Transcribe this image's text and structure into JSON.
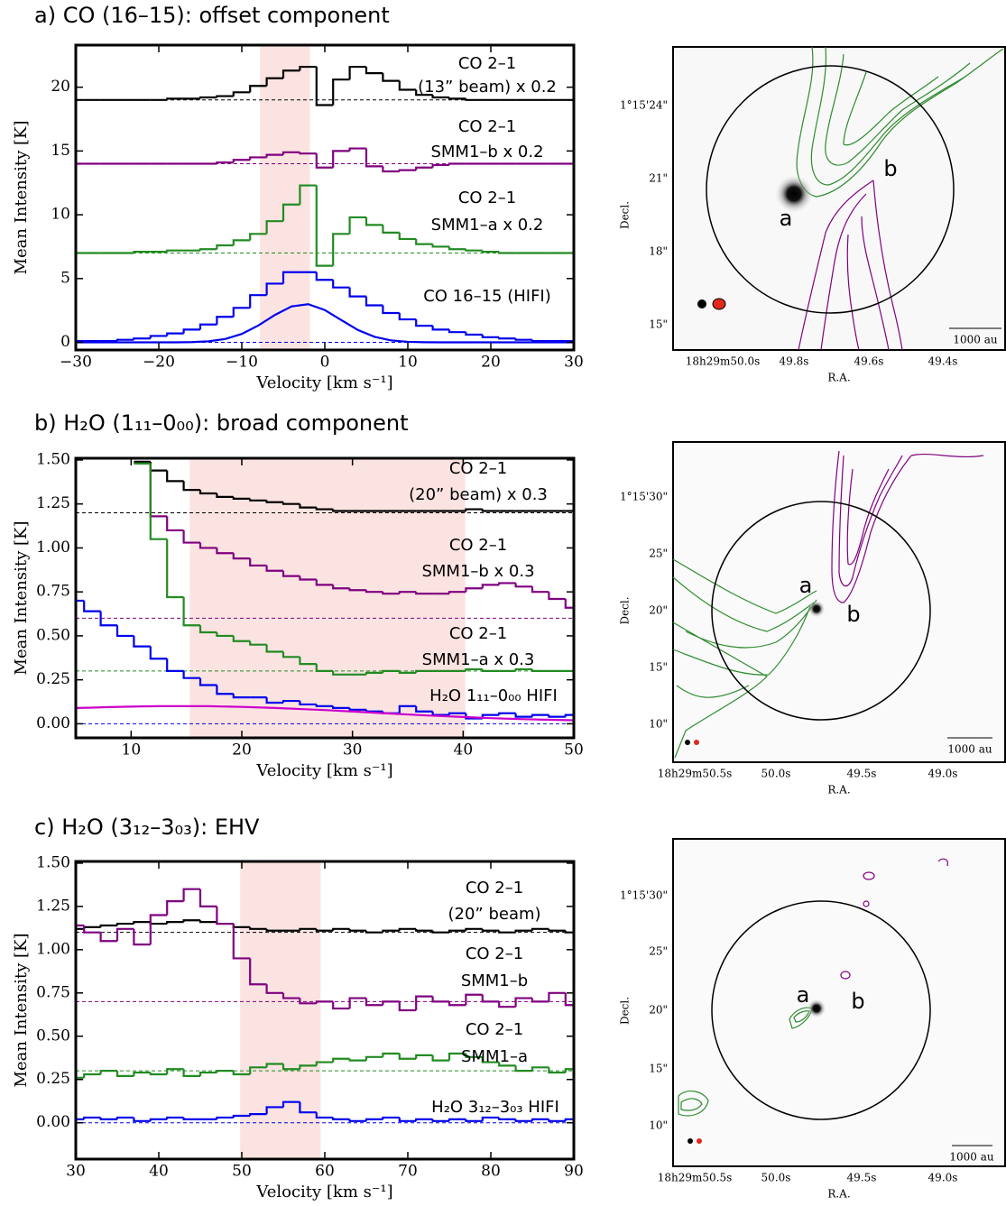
{
  "chart_data": [
    {
      "type": "step",
      "title": "a) CO (16–15): offset component",
      "xlabel": "Velocity [km s⁻¹]",
      "ylabel": "Mean Intensity [K]",
      "x": [
        -30,
        -28,
        -26,
        -24,
        -22,
        -20,
        -18,
        -16,
        -14,
        -12,
        -10,
        -8,
        -6,
        -4,
        -2,
        0,
        2,
        4,
        6,
        8,
        10,
        12,
        14,
        16,
        18,
        20,
        22,
        24,
        26,
        28,
        30
      ],
      "xlim": [
        -30,
        30
      ],
      "xticks": [
        {
          "value": -30,
          "label": "−30"
        },
        {
          "value": -20,
          "label": "−20"
        },
        {
          "value": -10,
          "label": "−10"
        },
        0,
        10,
        20,
        30
      ],
      "ylim": [
        -0.6,
        23.3
      ],
      "yticks": [
        0,
        5,
        10,
        15,
        20
      ],
      "shade": [
        -7.8,
        -1.8
      ],
      "shade_color": "#fbe3e1",
      "series": [
        {
          "label": [
            "CO 2–1",
            "(13” beam) x 0.2"
          ],
          "color": "#000000",
          "baseline": 19,
          "values": [
            19,
            19,
            19,
            19,
            19,
            19,
            19.1,
            19.1,
            19.2,
            19.3,
            19.6,
            20.1,
            20.7,
            21.3,
            21.6,
            18.6,
            20.6,
            21.6,
            21.1,
            20.5,
            19.8,
            19.4,
            19.2,
            19.1,
            19,
            19,
            19,
            19,
            19,
            19,
            19
          ]
        },
        {
          "label": [
            "CO 2–1",
            "SMM1–b x 0.2"
          ],
          "color": "#800080",
          "baseline": 14,
          "values": [
            14,
            14,
            14,
            14,
            14,
            14,
            14,
            14,
            14,
            14.1,
            14.3,
            14.5,
            14.7,
            14.9,
            14.8,
            13.7,
            15,
            15.2,
            13.8,
            13.4,
            13.5,
            13.7,
            13.9,
            14,
            14,
            14,
            14,
            14,
            14,
            14,
            14
          ]
        },
        {
          "label": [
            "CO 2–1",
            "SMM1–a x 0.2"
          ],
          "color": "#228b22",
          "baseline": 7,
          "values": [
            7,
            7,
            7,
            7,
            7.1,
            7.1,
            7.2,
            7.2,
            7.3,
            7.6,
            8,
            8.5,
            9.5,
            10.8,
            12.3,
            6,
            8.5,
            9.8,
            9.2,
            8.6,
            8.1,
            7.7,
            7.5,
            7.3,
            7.2,
            7.1,
            7,
            7,
            7,
            7,
            7
          ]
        },
        {
          "label": [
            "CO 16–15 (HIFI)"
          ],
          "color": "#0000ee",
          "baseline": 0,
          "values": [
            0.1,
            0.1,
            0.1,
            0.2,
            0.3,
            0.5,
            0.7,
            1,
            1.4,
            2,
            2.7,
            3.7,
            4.6,
            5.5,
            5.5,
            4.9,
            4.3,
            3.6,
            2.9,
            2.3,
            1.8,
            1.3,
            1,
            0.8,
            0.6,
            0.4,
            0.3,
            0.2,
            0.1,
            0.1,
            0.1
          ]
        }
      ],
      "fit": {
        "color": "#0000ee",
        "values": [
          0,
          0,
          0,
          0,
          0,
          0,
          0,
          0.02,
          0.08,
          0.26,
          0.66,
          1.32,
          2.15,
          2.82,
          2.99,
          2.53,
          1.74,
          0.96,
          0.43,
          0.15,
          0.04,
          0.01,
          0,
          0,
          0,
          0,
          0,
          0,
          0,
          0,
          0
        ]
      }
    },
    {
      "type": "step",
      "title": "b) H₂O (1₁₁–0₀₀): broad component",
      "xlabel": "Velocity [km s⁻¹]",
      "ylabel": "Mean Intensity [K]",
      "x": [
        5,
        6.5,
        8,
        9.5,
        11,
        12.5,
        14,
        15.5,
        17,
        18.5,
        20,
        21.5,
        23,
        24.5,
        26,
        27.5,
        29,
        30.5,
        32,
        33.5,
        35,
        36.5,
        38,
        39.5,
        41,
        42.5,
        44,
        45.5,
        47,
        48.5,
        50
      ],
      "xlim": [
        5,
        50
      ],
      "xticks": [
        10,
        20,
        30,
        40,
        50
      ],
      "ylim": [
        -0.08,
        1.51
      ],
      "yticks": [
        {
          "value": 0,
          "label": "0.00"
        },
        {
          "value": 0.25,
          "label": "0.25"
        },
        {
          "value": 0.5,
          "label": "0.50"
        },
        {
          "value": 0.75,
          "label": "0.75"
        },
        {
          "value": 1,
          "label": "1.00"
        },
        {
          "value": 1.25,
          "label": "1.25"
        },
        {
          "value": 1.5,
          "label": "1.50"
        }
      ],
      "shade": [
        15.3,
        40.2
      ],
      "shade_color": "#fbe3e1",
      "series": [
        {
          "label": [
            "CO 2–1",
            "(20” beam) x 0.3"
          ],
          "color": "#000000",
          "baseline": 1.2,
          "values": [
            null,
            null,
            null,
            null,
            1.49,
            1.44,
            1.38,
            1.33,
            1.31,
            1.29,
            1.28,
            1.27,
            1.26,
            1.25,
            1.23,
            1.22,
            1.21,
            1.21,
            1.21,
            1.21,
            1.21,
            1.21,
            1.21,
            1.21,
            1.22,
            1.21,
            1.21,
            1.21,
            1.21,
            1.21,
            1.21
          ]
        },
        {
          "label": [
            "CO 2–1",
            "SMM1–b x 0.3"
          ],
          "color": "#800080",
          "baseline": 0.6,
          "values": [
            null,
            null,
            null,
            null,
            1.48,
            1.18,
            1.1,
            1.03,
            1,
            0.97,
            0.94,
            0.9,
            0.87,
            0.84,
            0.82,
            0.79,
            0.77,
            0.76,
            0.75,
            0.74,
            0.75,
            0.74,
            0.74,
            0.75,
            0.77,
            0.79,
            0.8,
            0.78,
            0.75,
            0.71,
            0.66
          ]
        },
        {
          "label": [
            "CO 2–1",
            "SMM1–a x 0.3"
          ],
          "color": "#228b22",
          "baseline": 0.3,
          "values": [
            null,
            null,
            null,
            null,
            1.48,
            1.05,
            0.72,
            0.56,
            0.52,
            0.5,
            0.47,
            0.45,
            0.41,
            0.38,
            0.34,
            0.3,
            0.28,
            0.28,
            0.29,
            0.3,
            0.29,
            0.3,
            0.3,
            0.3,
            0.31,
            0.3,
            0.3,
            0.31,
            0.3,
            0.3,
            0.3
          ]
        },
        {
          "label": [
            "H₂O 1₁₁–0₀₀ HIFI"
          ],
          "color": "#0000ee",
          "baseline": 0,
          "values": [
            0.7,
            0.64,
            0.56,
            0.5,
            0.44,
            0.37,
            0.3,
            0.26,
            0.22,
            0.17,
            0.15,
            0.15,
            0.12,
            0.13,
            0.11,
            0.1,
            0.09,
            0.08,
            0.07,
            0.06,
            0.1,
            0.07,
            0.05,
            0.06,
            0.03,
            0.05,
            0.06,
            0.04,
            0.05,
            0.04,
            0.05
          ]
        }
      ],
      "fit": {
        "color": "#cc00cc",
        "values": [
          0.09,
          0.092,
          0.095,
          0.097,
          0.099,
          0.1,
          0.1,
          0.1,
          0.1,
          0.098,
          0.096,
          0.093,
          0.09,
          0.086,
          0.082,
          0.078,
          0.073,
          0.068,
          0.063,
          0.058,
          0.053,
          0.048,
          0.044,
          0.04,
          0.036,
          0.032,
          0.029,
          0.026,
          0.024,
          0.022,
          0.02
        ]
      }
    },
    {
      "type": "step",
      "title": "c) H₂O (3₁₂–3₀₃): EHV",
      "xlabel": "Velocity [km s⁻¹]",
      "ylabel": "Mean Intensity [K]",
      "x": [
        30,
        32,
        34,
        36,
        38,
        40,
        42,
        44,
        46,
        48,
        50,
        52,
        54,
        56,
        58,
        60,
        62,
        64,
        66,
        68,
        70,
        72,
        74,
        76,
        78,
        80,
        82,
        84,
        86,
        88,
        90
      ],
      "xlim": [
        30,
        90
      ],
      "xticks": [
        30,
        40,
        50,
        60,
        70,
        80,
        90
      ],
      "ylim": [
        -0.21,
        1.51
      ],
      "yticks": [
        {
          "value": 0,
          "label": "0.00"
        },
        {
          "value": 0.25,
          "label": "0.25"
        },
        {
          "value": 0.5,
          "label": "0.50"
        },
        {
          "value": 0.75,
          "label": "0.75"
        },
        {
          "value": 1,
          "label": "1.00"
        },
        {
          "value": 1.25,
          "label": "1.25"
        },
        {
          "value": 1.5,
          "label": "1.50"
        }
      ],
      "shade": [
        49.8,
        59.5
      ],
      "shade_color": "#fbe3e1",
      "series": [
        {
          "label": [
            "CO 2–1",
            "(20” beam)"
          ],
          "color": "#000000",
          "baseline": 1.1,
          "values": [
            1.12,
            1.13,
            1.14,
            1.15,
            1.16,
            1.15,
            1.16,
            1.17,
            1.16,
            1.15,
            1.13,
            1.12,
            1.11,
            1.11,
            1.12,
            1.11,
            1.12,
            1.11,
            1.1,
            1.11,
            1.12,
            1.11,
            1.1,
            1.11,
            1.12,
            1.11,
            1.1,
            1.11,
            1.12,
            1.11,
            1.1
          ]
        },
        {
          "label": [
            "CO 2–1",
            "SMM1–b"
          ],
          "color": "#800080",
          "baseline": 0.7,
          "values": [
            1.14,
            1.1,
            1.05,
            1.12,
            1.03,
            1.2,
            1.28,
            1.35,
            1.25,
            1.15,
            0.95,
            0.8,
            0.75,
            0.72,
            0.69,
            0.7,
            0.66,
            0.72,
            0.68,
            0.7,
            0.65,
            0.73,
            0.7,
            0.68,
            0.74,
            0.7,
            0.67,
            0.72,
            0.7,
            0.75,
            0.68
          ]
        },
        {
          "label": [
            "CO 2–1",
            "SMM1–a"
          ],
          "color": "#228b22",
          "baseline": 0.3,
          "values": [
            0.26,
            0.28,
            0.3,
            0.27,
            0.29,
            0.28,
            0.31,
            0.27,
            0.29,
            0.3,
            0.28,
            0.32,
            0.34,
            0.31,
            0.33,
            0.35,
            0.37,
            0.36,
            0.38,
            0.4,
            0.37,
            0.39,
            0.36,
            0.4,
            0.38,
            0.35,
            0.33,
            0.3,
            0.32,
            0.29,
            0.31
          ]
        },
        {
          "label": [
            "H₂O 3₁₂–3₀₃ HIFI"
          ],
          "color": "#0000ee",
          "baseline": 0,
          "values": [
            0.02,
            0.03,
            0.02,
            0.03,
            0.01,
            0.02,
            0.03,
            0.02,
            0.02,
            0.03,
            0.04,
            0.05,
            0.09,
            0.12,
            0.06,
            0.03,
            0.02,
            0.01,
            0.02,
            0.03,
            0.01,
            0.02,
            0.01,
            0.02,
            0.01,
            0.03,
            0.02,
            0.01,
            0.02,
            0.01,
            0.02
          ]
        }
      ]
    }
  ],
  "maps": [
    {
      "yticks": [
        "1°15'24\"",
        "21\"",
        "18\"",
        "15\""
      ],
      "xticks": [
        "18h29m50.0s",
        "49.8s",
        "49.6s",
        "49.4s"
      ],
      "ylabel": "Decl.",
      "xlabel": "R.A.",
      "scalebar": "1000 au",
      "sources": [
        "a",
        "b"
      ]
    },
    {
      "yticks": [
        "1°15'30\"",
        "25\"",
        "20\"",
        "15\"",
        "10\""
      ],
      "xticks": [
        "18h29m50.5s",
        "50.0s",
        "49.5s",
        "49.0s"
      ],
      "ylabel": "Decl.",
      "xlabel": "R.A.",
      "scalebar": "1000 au",
      "sources": [
        "a",
        "b"
      ]
    },
    {
      "yticks": [
        "1°15'30\"",
        "25\"",
        "20\"",
        "15\"",
        "10\""
      ],
      "xticks": [
        "18h29m50.5s",
        "50.0s",
        "49.5s",
        "49.0s"
      ],
      "ylabel": "Decl.",
      "xlabel": "R.A.",
      "scalebar": "1000 au",
      "sources": [
        "a",
        "b"
      ]
    }
  ]
}
